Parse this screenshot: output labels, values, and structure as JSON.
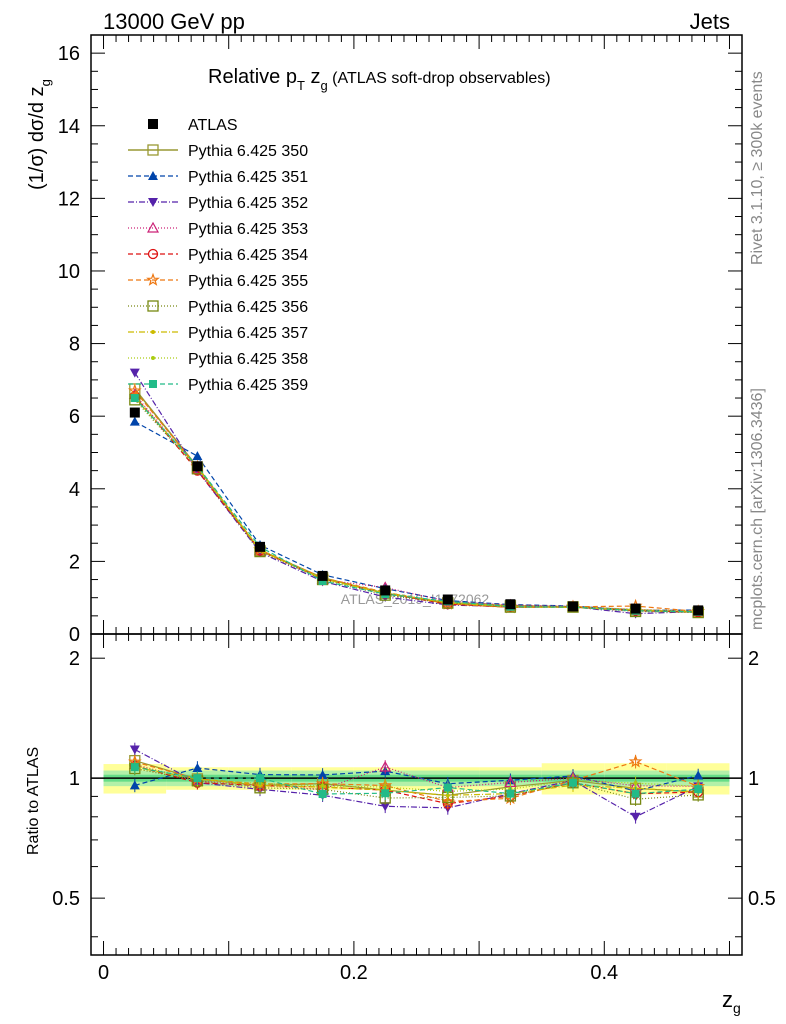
{
  "header": {
    "left": "13000 GeV pp",
    "right": "Jets"
  },
  "title": {
    "main": "Relative p",
    "sub_T": "T",
    "mid": " z",
    "sub_g": "g",
    "tail": " (ATLAS soft-drop observables)"
  },
  "side_labels": {
    "rivet": "Rivet 3.1.10, ≥ 300k events",
    "mcplots": "mcplots.cern.ch [arXiv:1306.3436]"
  },
  "watermark": "ATLAS_2019_I1772062",
  "axes": {
    "ylabel_main": "(1/σ) dσ/d z",
    "ylabel_main_sub": "g",
    "ylabel_ratio": "Ratio to ATLAS",
    "xlabel": "z",
    "xlabel_sub": "g"
  },
  "chart_data": {
    "type": "line",
    "x": [
      0.025,
      0.075,
      0.125,
      0.175,
      0.225,
      0.275,
      0.325,
      0.375,
      0.425,
      0.475
    ],
    "xlim": [
      -0.01,
      0.51
    ],
    "ylim_main": [
      0,
      16.5
    ],
    "yticks_main": [
      0,
      2,
      4,
      6,
      8,
      10,
      12,
      14,
      16
    ],
    "ylim_ratio": [
      0.36,
      2.3
    ],
    "ylog_ratio": true,
    "yticks_ratio": [
      0.5,
      1,
      2
    ],
    "xticks": [
      0,
      0.2,
      0.4
    ],
    "reference": {
      "name": "ATLAS",
      "values": [
        6.1,
        4.62,
        2.4,
        1.6,
        1.2,
        0.95,
        0.82,
        0.76,
        0.7,
        0.65
      ]
    },
    "series": [
      {
        "name": "Pythia 6.425 350",
        "color": "#999933",
        "marker": "square-open",
        "dash": "",
        "values": [
          6.75,
          4.6,
          2.3,
          1.55,
          1.12,
          0.86,
          0.78,
          0.75,
          0.66,
          0.6
        ]
      },
      {
        "name": "Pythia 6.425 351",
        "color": "#0044aa",
        "marker": "triangle-up",
        "dash": "5,3",
        "values": [
          5.85,
          4.9,
          2.45,
          1.63,
          1.25,
          0.92,
          0.81,
          0.77,
          0.65,
          0.66
        ]
      },
      {
        "name": "Pythia 6.425 352",
        "color": "#5522aa",
        "marker": "triangle-down",
        "dash": "6,2,1,2",
        "values": [
          7.2,
          4.5,
          2.25,
          1.45,
          1.02,
          0.8,
          0.75,
          0.75,
          0.56,
          0.62
        ]
      },
      {
        "name": "Pythia 6.425 353",
        "color": "#cc2277",
        "marker": "triangle-open",
        "dash": "1,2",
        "values": [
          6.6,
          4.55,
          2.3,
          1.5,
          1.28,
          0.9,
          0.8,
          0.76,
          0.67,
          0.62
        ]
      },
      {
        "name": "Pythia 6.425 354",
        "color": "#dd1111",
        "marker": "circle-open",
        "dash": "5,3",
        "values": [
          6.55,
          4.5,
          2.3,
          1.52,
          1.12,
          0.82,
          0.74,
          0.74,
          0.64,
          0.6
        ]
      },
      {
        "name": "Pythia 6.425 355",
        "color": "#ee7711",
        "marker": "star-open",
        "dash": "5,3",
        "values": [
          6.7,
          4.6,
          2.32,
          1.55,
          1.15,
          0.83,
          0.73,
          0.75,
          0.77,
          0.62
        ]
      },
      {
        "name": "Pythia 6.425 356",
        "color": "#778811",
        "marker": "square-open",
        "dash": "1,2",
        "values": [
          6.45,
          4.55,
          2.27,
          1.5,
          1.07,
          0.85,
          0.74,
          0.74,
          0.62,
          0.59
        ]
      },
      {
        "name": "Pythia 6.425 357",
        "color": "#ccbb00",
        "marker": "dot",
        "dash": "6,2,1,2",
        "values": [
          6.5,
          4.6,
          2.3,
          1.52,
          1.12,
          0.86,
          0.75,
          0.73,
          0.66,
          0.6
        ]
      },
      {
        "name": "Pythia 6.425 358",
        "color": "#aacc11",
        "marker": "dot",
        "dash": "1,2",
        "values": [
          6.55,
          4.58,
          2.33,
          1.53,
          1.14,
          0.88,
          0.77,
          0.75,
          0.68,
          0.62
        ]
      },
      {
        "name": "Pythia 6.425 359",
        "color": "#22bb88",
        "marker": "square",
        "dash": "5,3",
        "values": [
          6.5,
          4.62,
          2.4,
          1.46,
          1.1,
          0.9,
          0.75,
          0.74,
          0.64,
          0.61
        ]
      }
    ]
  }
}
